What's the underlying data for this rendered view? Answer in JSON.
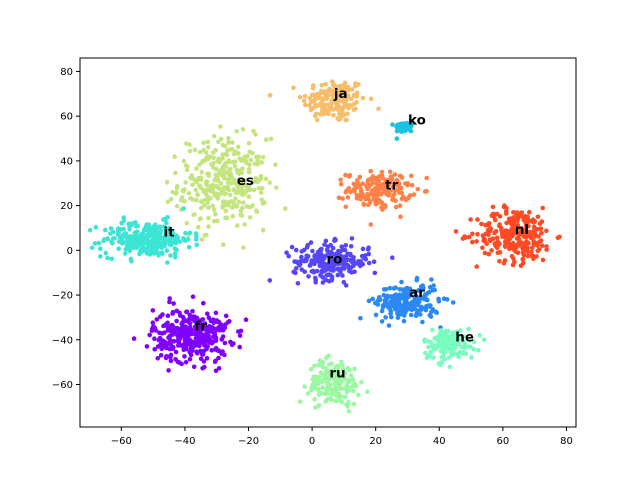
{
  "chart_data": {
    "type": "scatter",
    "title": "",
    "xlabel": "",
    "ylabel": "",
    "xlim": [
      -73,
      83
    ],
    "ylim": [
      -79,
      86
    ],
    "xticks": [
      -60,
      -40,
      -20,
      0,
      20,
      40,
      60,
      80
    ],
    "yticks": [
      -60,
      -40,
      -20,
      0,
      20,
      40,
      60,
      80
    ],
    "grid": false,
    "legend": "none",
    "clusters": [
      {
        "label": "ja",
        "color": "#f8bd6a",
        "center": [
          7,
          67
        ],
        "spread": [
          5,
          5
        ],
        "count": 160
      },
      {
        "label": "ko",
        "color": "#1bc1e4",
        "center": [
          29,
          55
        ],
        "spread": [
          1.5,
          1.2
        ],
        "count": 45
      },
      {
        "label": "es",
        "color": "#c4e57e",
        "center": [
          -28,
          30
        ],
        "spread": [
          7,
          10
        ],
        "count": 320
      },
      {
        "label": "tr",
        "color": "#ff8148",
        "center": [
          21,
          27
        ],
        "spread": [
          5,
          4
        ],
        "count": 170
      },
      {
        "label": "it",
        "color": "#3ce4d5",
        "center": [
          -52,
          5
        ],
        "spread": [
          7,
          4
        ],
        "count": 260
      },
      {
        "label": "nl",
        "color": "#ff4a24",
        "center": [
          64,
          7
        ],
        "spread": [
          6,
          6
        ],
        "count": 260
      },
      {
        "label": "ro",
        "color": "#5646f8",
        "center": [
          6,
          -5
        ],
        "spread": [
          6,
          4
        ],
        "count": 220
      },
      {
        "label": "ar",
        "color": "#2b88f4",
        "center": [
          30,
          -23
        ],
        "spread": [
          5,
          4
        ],
        "count": 200
      },
      {
        "label": "fr",
        "color": "#8000ff",
        "center": [
          -38,
          -38
        ],
        "spread": [
          6,
          6
        ],
        "count": 330
      },
      {
        "label": "he",
        "color": "#78fcc0",
        "center": [
          43,
          -42
        ],
        "spread": [
          4,
          3.5
        ],
        "count": 150
      },
      {
        "label": "ru",
        "color": "#9cf7a2",
        "center": [
          7,
          -59
        ],
        "spread": [
          4,
          5
        ],
        "count": 170
      }
    ],
    "label_positions": [
      {
        "label": "ja",
        "x": 9,
        "y": 70
      },
      {
        "label": "ko",
        "x": 33,
        "y": 58
      },
      {
        "label": "es",
        "x": -21,
        "y": 31
      },
      {
        "label": "tr",
        "x": 25,
        "y": 29
      },
      {
        "label": "it",
        "x": -45,
        "y": 8
      },
      {
        "label": "nl",
        "x": 66,
        "y": 9
      },
      {
        "label": "ro",
        "x": 7,
        "y": -4
      },
      {
        "label": "ar",
        "x": 33,
        "y": -19
      },
      {
        "label": "fr",
        "x": -35,
        "y": -34
      },
      {
        "label": "he",
        "x": 48,
        "y": -39
      },
      {
        "label": "ru",
        "x": 8,
        "y": -55
      }
    ]
  }
}
